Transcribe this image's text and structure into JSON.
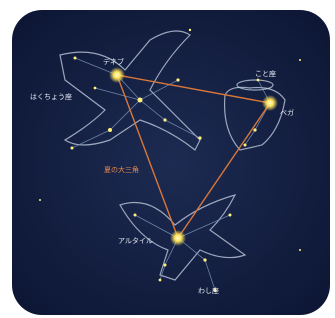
{
  "labels": {
    "deneb": "デネブ",
    "cygnus": "はくちょう座",
    "lyra": "こと座",
    "vega": "ベガ",
    "triangle": "夏の大三角",
    "altair": "アルタイル",
    "aquila": "わし座"
  }
}
